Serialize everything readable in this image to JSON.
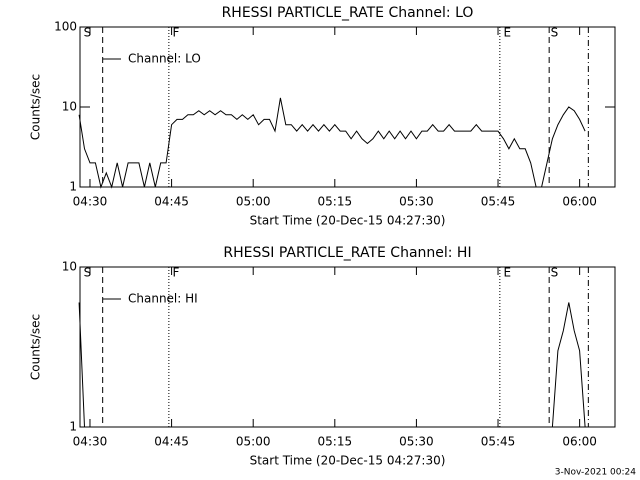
{
  "chart_data": [
    {
      "type": "line",
      "title": "RHESSI PARTICLE_RATE Channel: LO",
      "xlabel": "Start Time (20-Dec-15 04:27:30)",
      "ylabel": "Counts/sec",
      "log": true,
      "ylim": [
        1,
        100
      ],
      "yticks": [
        1,
        10,
        100
      ],
      "xlim": [
        "04:28:10",
        "06:06:30"
      ],
      "xticks": [
        "04:30",
        "04:45",
        "05:00",
        "05:15",
        "05:30",
        "05:45",
        "06:00"
      ],
      "legend": "top-left",
      "x": [
        "04:28",
        "04:29",
        "04:30",
        "04:31",
        "04:32",
        "04:33",
        "04:34",
        "04:35",
        "04:36",
        "04:37",
        "04:38",
        "04:39",
        "04:40",
        "04:41",
        "04:42",
        "04:43",
        "04:44",
        "04:45",
        "04:46",
        "04:47",
        "04:48",
        "04:49",
        "04:50",
        "04:51",
        "04:52",
        "04:53",
        "04:54",
        "04:55",
        "04:56",
        "04:57",
        "04:58",
        "04:59",
        "05:00",
        "05:01",
        "05:02",
        "05:03",
        "05:04",
        "05:05",
        "05:06",
        "05:07",
        "05:08",
        "05:09",
        "05:10",
        "05:11",
        "05:12",
        "05:13",
        "05:14",
        "05:15",
        "05:16",
        "05:17",
        "05:18",
        "05:19",
        "05:20",
        "05:21",
        "05:22",
        "05:23",
        "05:24",
        "05:25",
        "05:26",
        "05:27",
        "05:28",
        "05:29",
        "05:30",
        "05:31",
        "05:32",
        "05:33",
        "05:34",
        "05:35",
        "05:36",
        "05:37",
        "05:38",
        "05:39",
        "05:40",
        "05:41",
        "05:42",
        "05:43",
        "05:44",
        "05:45",
        "05:46",
        "05:47",
        "05:48",
        "05:49",
        "05:50",
        "05:51",
        "05:52",
        "05:53",
        "05:54",
        "05:55",
        "05:56",
        "05:57",
        "05:58",
        "05:59",
        "06:00",
        "06:01"
      ],
      "series": [
        {
          "name": "Channel: LO",
          "color": "#000000",
          "values": [
            8,
            3,
            2,
            2,
            1,
            1.5,
            1,
            2,
            1,
            2,
            2,
            2,
            1,
            2,
            1,
            2,
            2,
            6,
            7,
            7,
            8,
            8,
            9,
            8,
            9,
            8,
            9,
            8,
            8,
            7,
            8,
            7,
            8,
            6,
            7,
            7,
            5,
            13,
            6,
            6,
            5,
            6,
            5,
            6,
            5,
            6,
            5,
            6,
            5,
            5,
            4,
            5,
            4,
            3.5,
            4,
            5,
            4,
            5,
            4,
            5,
            4,
            5,
            4,
            5,
            5,
            6,
            5,
            5,
            6,
            5,
            5,
            5,
            5,
            6,
            5,
            5,
            5,
            5,
            4,
            3,
            4,
            3,
            3,
            2,
            1,
            1,
            2,
            4,
            6,
            8,
            10,
            9,
            7,
            5
          ]
        }
      ],
      "vlines": [
        {
          "x": "04:32:20",
          "style": "dashed"
        },
        {
          "x": "04:44:30",
          "style": "dotted"
        },
        {
          "x": "05:45:20",
          "style": "dotted"
        },
        {
          "x": "05:54:24",
          "style": "dashed"
        },
        {
          "x": "06:01:36",
          "style": "dashdot"
        }
      ],
      "annotations": [
        {
          "text": "S",
          "x": "04:28:50"
        },
        {
          "text": "F",
          "x": "04:45:10"
        },
        {
          "text": "E",
          "x": "05:46:00"
        },
        {
          "text": "S",
          "x": "05:54:40"
        }
      ]
    },
    {
      "type": "line",
      "title": "RHESSI PARTICLE_RATE Channel: HI",
      "xlabel": "Start Time (20-Dec-15 04:27:30)",
      "ylabel": "Counts/sec",
      "log": true,
      "ylim": [
        1,
        10
      ],
      "yticks": [
        1,
        10
      ],
      "xlim": [
        "04:28:10",
        "06:06:30"
      ],
      "xticks": [
        "04:30",
        "04:45",
        "05:00",
        "05:15",
        "05:30",
        "05:45",
        "06:00"
      ],
      "legend": "top-left",
      "x": [
        "04:28",
        "04:29",
        "04:30",
        "05:55",
        "05:56",
        "05:57",
        "05:58",
        "05:59",
        "06:00",
        "06:01"
      ],
      "series": [
        {
          "name": "Channel: HI",
          "color": "#000000",
          "values": [
            6,
            1,
            null,
            1,
            3,
            4,
            6,
            4,
            3,
            1
          ]
        }
      ],
      "vlines": [
        {
          "x": "04:32:20",
          "style": "dashed"
        },
        {
          "x": "04:44:30",
          "style": "dotted"
        },
        {
          "x": "05:45:20",
          "style": "dotted"
        },
        {
          "x": "05:54:24",
          "style": "dashed"
        },
        {
          "x": "06:01:36",
          "style": "dashdot"
        }
      ],
      "annotations": [
        {
          "text": "S",
          "x": "04:28:50"
        },
        {
          "text": "F",
          "x": "04:45:10"
        },
        {
          "text": "E",
          "x": "05:46:00"
        },
        {
          "text": "S",
          "x": "05:54:40"
        }
      ]
    }
  ],
  "footer": "3-Nov-2021 00:24"
}
